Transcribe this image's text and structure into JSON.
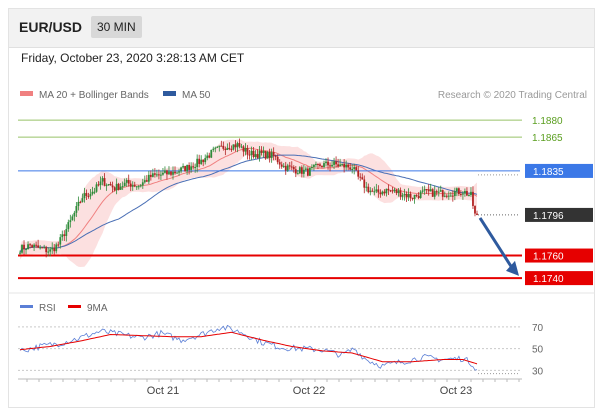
{
  "header": {
    "symbol": "EUR/USD",
    "timeframe": "30 MIN"
  },
  "timestamp": "Friday, October 23, 2020 3:28:13 AM CET",
  "chart_data": [
    {
      "type": "candlestick",
      "legend": [
        {
          "name": "MA 20 + Bollinger Bands",
          "color": "#f08080"
        },
        {
          "name": "MA 50",
          "color": "#2e5a9e"
        }
      ],
      "credit": "Research © 2020 Trading Central",
      "ylim": [
        1.1733,
        1.1889
      ],
      "levels": [
        {
          "value": 1.188,
          "label": "1.1880",
          "color": "#7cb342",
          "kind": "target"
        },
        {
          "value": 1.1865,
          "label": "1.1865",
          "color": "#7cb342",
          "kind": "target"
        },
        {
          "value": 1.1835,
          "label": "1.1835",
          "color": "#3b78e7",
          "kind": "pivot"
        },
        {
          "value": 1.176,
          "label": "1.1760",
          "color": "#e60000",
          "kind": "support"
        },
        {
          "value": 1.174,
          "label": "1.1740",
          "color": "#e60000",
          "kind": "support"
        }
      ],
      "last_price": {
        "value": 1.1796,
        "label": "1.1796",
        "color": "#333333"
      },
      "forecast_arrow": {
        "from": 1.1796,
        "to": 1.1742,
        "color": "#2e5a9e"
      },
      "x_ticks": [
        "Oct 21",
        "Oct 22",
        "Oct 23"
      ],
      "grid": true,
      "anchors": [
        [
          0,
          1.1766
        ],
        [
          5,
          1.1769
        ],
        [
          10,
          1.1766
        ],
        [
          15,
          1.1764
        ],
        [
          19,
          1.177
        ],
        [
          25,
          1.179
        ],
        [
          31,
          1.1812
        ],
        [
          37,
          1.1818
        ],
        [
          41,
          1.1826
        ],
        [
          47,
          1.182
        ],
        [
          53,
          1.1824
        ],
        [
          59,
          1.1822
        ],
        [
          65,
          1.183
        ],
        [
          71,
          1.1832
        ],
        [
          77,
          1.1834
        ],
        [
          83,
          1.1838
        ],
        [
          90,
          1.1844
        ],
        [
          96,
          1.1852
        ],
        [
          102,
          1.1857
        ],
        [
          108,
          1.1858
        ],
        [
          114,
          1.185
        ],
        [
          120,
          1.185
        ],
        [
          126,
          1.1848
        ],
        [
          131,
          1.1839
        ],
        [
          137,
          1.1836
        ],
        [
          143,
          1.1834
        ],
        [
          149,
          1.184
        ],
        [
          155,
          1.1841
        ],
        [
          162,
          1.1839
        ],
        [
          165,
          1.1838
        ],
        [
          168,
          1.1829
        ],
        [
          172,
          1.182
        ],
        [
          176,
          1.1815
        ],
        [
          182,
          1.1818
        ],
        [
          188,
          1.1816
        ],
        [
          195,
          1.1812
        ],
        [
          201,
          1.1816
        ],
        [
          208,
          1.1815
        ],
        [
          214,
          1.1816
        ],
        [
          220,
          1.1817
        ],
        [
          224,
          1.1813
        ],
        [
          226,
          1.1796
        ],
        [
          227,
          1.1794
        ]
      ]
    },
    {
      "type": "line",
      "legend": [
        {
          "name": "RSI",
          "color": "#5b7fd6"
        },
        {
          "name": "9MA",
          "color": "#e60000"
        }
      ],
      "ylim": [
        23,
        80
      ],
      "y_ticks": [
        70,
        50,
        30
      ],
      "series": [
        {
          "name": "RSI",
          "anchors": [
            [
              0,
              48
            ],
            [
              10,
              52
            ],
            [
              20,
              55
            ],
            [
              30,
              60
            ],
            [
              40,
              66
            ],
            [
              50,
              63
            ],
            [
              60,
              60
            ],
            [
              70,
              64
            ],
            [
              80,
              58
            ],
            [
              90,
              63
            ],
            [
              100,
              70
            ],
            [
              110,
              65
            ],
            [
              120,
              56
            ],
            [
              130,
              51
            ],
            [
              140,
              50
            ],
            [
              150,
              49
            ],
            [
              160,
              44
            ],
            [
              166,
              50
            ],
            [
              172,
              40
            ],
            [
              180,
              34
            ],
            [
              190,
              38
            ],
            [
              200,
              42
            ],
            [
              210,
              40
            ],
            [
              220,
              41
            ],
            [
              224,
              37
            ],
            [
              227,
              31
            ]
          ]
        },
        {
          "name": "9MA",
          "anchors": [
            [
              0,
              49
            ],
            [
              15,
              52
            ],
            [
              30,
              57
            ],
            [
              45,
              63
            ],
            [
              60,
              62
            ],
            [
              75,
              61
            ],
            [
              90,
              61
            ],
            [
              105,
              65
            ],
            [
              120,
              58
            ],
            [
              135,
              52
            ],
            [
              150,
              48
            ],
            [
              165,
              46
            ],
            [
              180,
              38
            ],
            [
              195,
              38
            ],
            [
              210,
              40
            ],
            [
              220,
              40
            ],
            [
              227,
              36
            ]
          ]
        }
      ]
    }
  ]
}
